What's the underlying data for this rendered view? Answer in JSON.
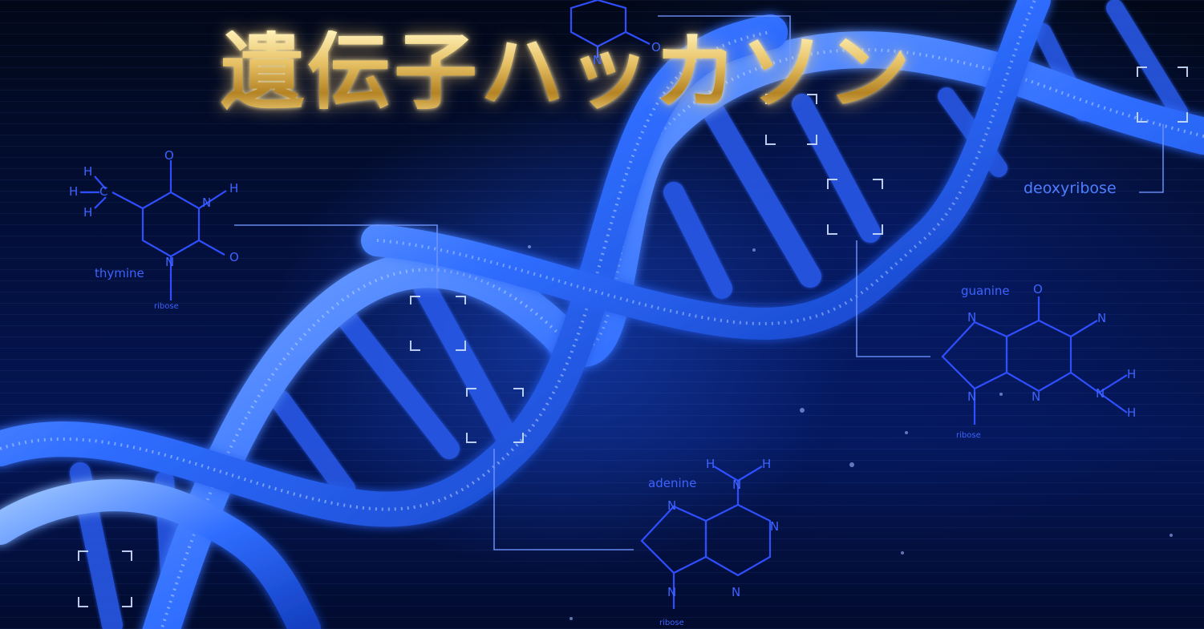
{
  "title": "遺伝子ハッカソン",
  "labels": {
    "thymine": "thymine",
    "thymine_ribose": "ribose",
    "deoxyribose": "deoxyribose",
    "guanine": "guanine",
    "guanine_ribose": "ribose",
    "adenine": "adenine",
    "adenine_ribose": "ribose"
  },
  "atoms": {
    "H": "H",
    "C": "C",
    "N": "N",
    "O": "O"
  },
  "colors": {
    "helix": "#2f6dff",
    "helix_glow": "#7fb0ff",
    "molecule_line": "#2f4fff",
    "title_gold": "#d9b255",
    "background": "#041656"
  }
}
